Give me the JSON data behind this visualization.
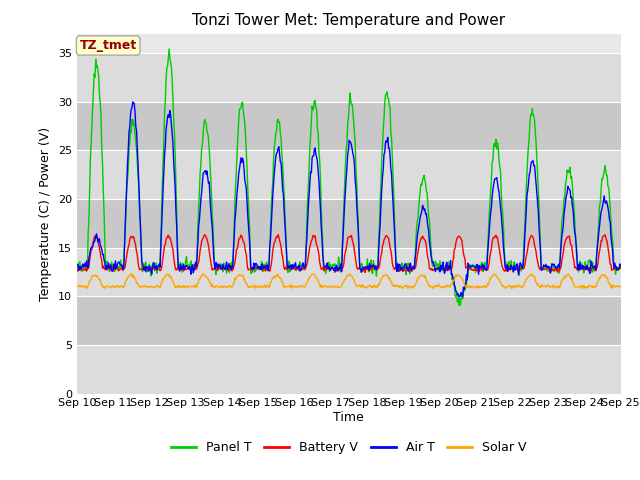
{
  "title": "Tonzi Tower Met: Temperature and Power",
  "xlabel": "Time",
  "ylabel": "Temperature (C) / Power (V)",
  "annotation": "TZ_tmet",
  "ylim": [
    0,
    37
  ],
  "yticks": [
    0,
    5,
    10,
    15,
    20,
    25,
    30,
    35
  ],
  "xtick_labels": [
    "Sep 10",
    "Sep 11",
    "Sep 12",
    "Sep 13",
    "Sep 14",
    "Sep 15",
    "Sep 16",
    "Sep 17",
    "Sep 18",
    "Sep 19",
    "Sep 20",
    "Sep 21",
    "Sep 22",
    "Sep 23",
    "Sep 24",
    "Sep 25"
  ],
  "colors": {
    "panel_t": "#00CC00",
    "battery_v": "#FF0000",
    "air_t": "#0000FF",
    "solar_v": "#FFA500"
  },
  "legend_labels": [
    "Panel T",
    "Battery V",
    "Air T",
    "Solar V"
  ],
  "fig_bg_color": "#FFFFFF",
  "plot_bg_color": "#E8E8E8",
  "band_light": "#DCDCDC",
  "band_dark": "#C8C8C8",
  "annotation_bg": "#FFFFCC",
  "annotation_fg": "#990000",
  "annotation_border": "#AAAAAA",
  "grid_color": "#FFFFFF",
  "title_fontsize": 11,
  "label_fontsize": 9,
  "tick_fontsize": 8
}
